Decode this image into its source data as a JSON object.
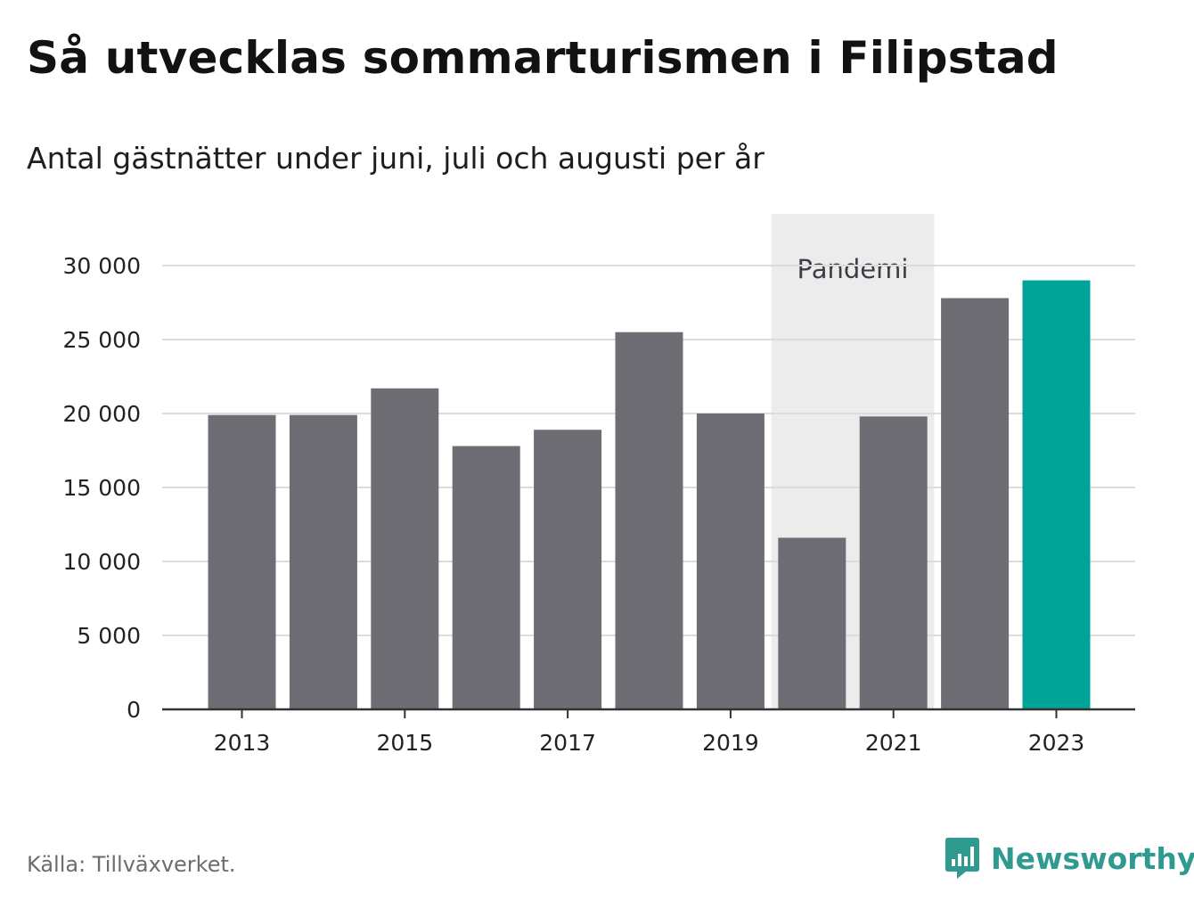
{
  "title": "Så utvecklas sommarturismen i Filipstad",
  "subtitle": "Antal gästnätter under juni, juli och augusti per år",
  "source": "Källa: Tillväxverket.",
  "brand": {
    "name": "Newsworthy",
    "icon": "newsworthy-logo-icon",
    "color": "#2f9a90"
  },
  "colors": {
    "bar": "#6e6d73",
    "highlight": "#00a398",
    "pandemic_band": "#ececec",
    "grid": "#dcdcdc",
    "axis": "#333333"
  },
  "chart_data": {
    "type": "bar",
    "categories": [
      "2013",
      "2014",
      "2015",
      "2016",
      "2017",
      "2018",
      "2019",
      "2020",
      "2021",
      "2022",
      "2023"
    ],
    "values": [
      19900,
      19900,
      21700,
      17800,
      18900,
      25500,
      20000,
      11600,
      19800,
      27800,
      29000
    ],
    "highlight_category": "2023",
    "x_tick_labels": [
      "2013",
      "2015",
      "2017",
      "2019",
      "2021",
      "2023"
    ],
    "y_ticks": [
      0,
      5000,
      10000,
      15000,
      20000,
      25000,
      30000
    ],
    "y_tick_labels": [
      "0",
      "5 000",
      "10 000",
      "15 000",
      "20 000",
      "25 000",
      "30 000"
    ],
    "ylim": [
      0,
      30000
    ],
    "grid": true,
    "xlabel": "",
    "ylabel": "",
    "annotation": {
      "label": "Pandemi",
      "from": "2020",
      "to": "2021"
    }
  }
}
